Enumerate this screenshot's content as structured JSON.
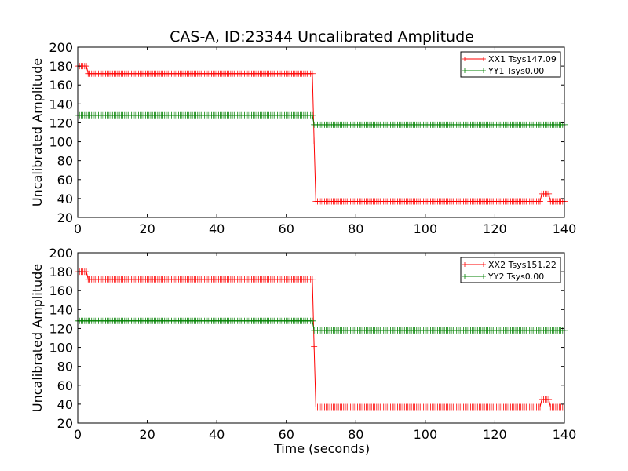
{
  "figure": {
    "title": "CAS-A, ID:23344 Uncalibrated Amplitude",
    "xlabel": "Time (seconds)"
  },
  "chart_data": [
    {
      "type": "line",
      "ylabel": "Uncalibrated Amplitude",
      "xlim": [
        0,
        140
      ],
      "ylim": [
        20,
        200
      ],
      "xticks": [
        0,
        20,
        40,
        60,
        80,
        100,
        120,
        140
      ],
      "yticks": [
        20,
        40,
        60,
        80,
        100,
        120,
        140,
        160,
        180,
        200
      ],
      "grid": false,
      "legend_position": "top-right",
      "series": [
        {
          "name": "XX1 Tsys147.09",
          "color": "#ff0000",
          "marker": "plus",
          "segments": [
            {
              "x0": 0,
              "x1": 2.5,
              "y": 180
            },
            {
              "x0": 3,
              "x1": 67.5,
              "y": 172
            },
            {
              "x0": 68,
              "x1": 68,
              "y": 101
            },
            {
              "x0": 68.5,
              "x1": 133,
              "y": 37
            },
            {
              "x0": 133.5,
              "x1": 135.5,
              "y": 45
            },
            {
              "x0": 136,
              "x1": 140,
              "y": 37
            }
          ]
        },
        {
          "name": "YY1 Tsys0.00",
          "color": "#008000",
          "marker": "plus",
          "segments": [
            {
              "x0": 0,
              "x1": 67.5,
              "y": 128
            },
            {
              "x0": 68,
              "x1": 140,
              "y": 118
            }
          ]
        }
      ]
    },
    {
      "type": "line",
      "ylabel": "Uncalibrated Amplitude",
      "xlim": [
        0,
        140
      ],
      "ylim": [
        20,
        200
      ],
      "xticks": [
        0,
        20,
        40,
        60,
        80,
        100,
        120,
        140
      ],
      "yticks": [
        20,
        40,
        60,
        80,
        100,
        120,
        140,
        160,
        180,
        200
      ],
      "grid": false,
      "legend_position": "top-right",
      "series": [
        {
          "name": "XX2 Tsys151.22",
          "color": "#ff0000",
          "marker": "plus",
          "segments": [
            {
              "x0": 0,
              "x1": 2.5,
              "y": 180
            },
            {
              "x0": 3,
              "x1": 67.5,
              "y": 172
            },
            {
              "x0": 68,
              "x1": 68,
              "y": 101
            },
            {
              "x0": 68.5,
              "x1": 133,
              "y": 37
            },
            {
              "x0": 133.5,
              "x1": 135.5,
              "y": 45
            },
            {
              "x0": 136,
              "x1": 140,
              "y": 37
            }
          ]
        },
        {
          "name": "YY2 Tsys0.00",
          "color": "#008000",
          "marker": "plus",
          "segments": [
            {
              "x0": 0,
              "x1": 67.5,
              "y": 128
            },
            {
              "x0": 68,
              "x1": 140,
              "y": 118
            }
          ]
        }
      ]
    }
  ]
}
